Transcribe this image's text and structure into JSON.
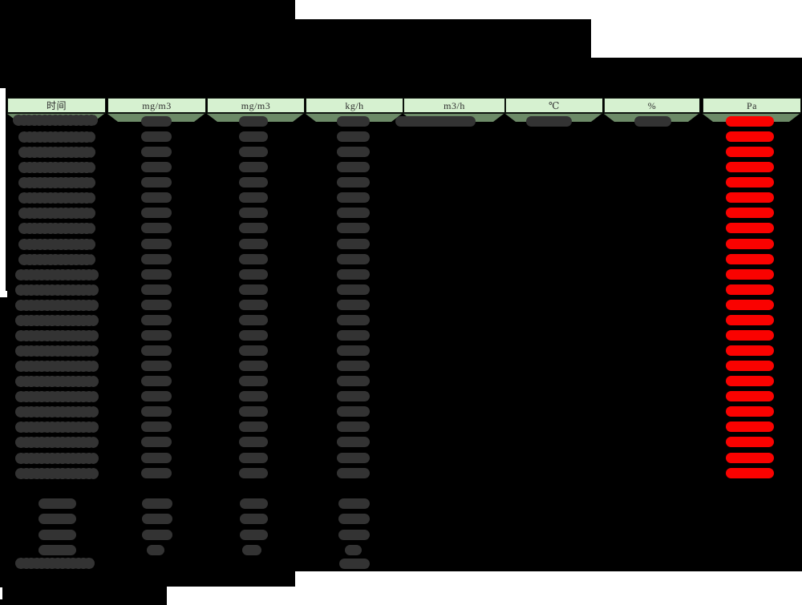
{
  "window": {
    "background": "#000000",
    "description_visible_regions": "black backdrop with white show-through patches"
  },
  "table": {
    "unit_headers": [
      {
        "id": "time",
        "label": "时间"
      },
      {
        "id": "conc1",
        "label": "mg/m3"
      },
      {
        "id": "conc2",
        "label": "mg/m3"
      },
      {
        "id": "rate",
        "label": "kg/h"
      },
      {
        "id": "flow",
        "label": "m3/h"
      },
      {
        "id": "temp",
        "label": "℃"
      },
      {
        "id": "humidity",
        "label": "%"
      },
      {
        "id": "pressure",
        "label": "Pa"
      }
    ],
    "colors": {
      "header_bg": "#d6f1d0",
      "header_text": "#2e2e2e",
      "band_bg": "#6c8a67",
      "value_blob": "#333333",
      "pressure_value": "#fa0200"
    },
    "body": {
      "hourly_row_count": 24,
      "summary_row_count": 4,
      "has_total_row": true,
      "values_illegible": true,
      "columns_filled_every_hourly_row": [
        "time",
        "conc1",
        "conc2",
        "rate",
        "pressure"
      ],
      "columns_filled_first_row_only": [
        "flow",
        "temp",
        "humidity"
      ],
      "columns_filled_summary_rows": [
        "time",
        "conc1",
        "conc2",
        "rate"
      ],
      "columns_filled_total_row": [
        "time",
        "rate"
      ]
    }
  }
}
